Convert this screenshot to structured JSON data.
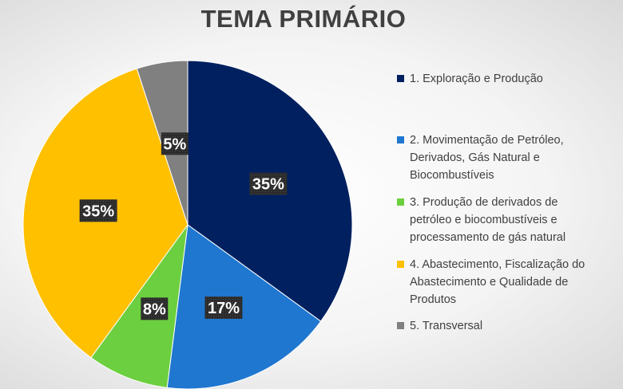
{
  "chart_data": {
    "type": "pie",
    "title": "TEMA PRIMÁRIO",
    "categories": [
      "1. Exploração e Produção",
      "2. Movimentação de Petróleo, Derivados, Gás Natural e Biocombustíveis",
      "3. Produção de derivados de petróleo e biocombustíveis e processamento de gás natural",
      "4. Abastecimento, Fiscalização do Abastecimento e Qualidade de Produtos",
      "5. Transversal"
    ],
    "values": [
      35,
      17,
      8,
      35,
      5
    ],
    "data_labels": [
      "35%",
      "17%",
      "8%",
      "35%",
      "5%"
    ],
    "colors": [
      "#002060",
      "#1f77d0",
      "#6ccf3f",
      "#ffc000",
      "#808080"
    ],
    "legend_position": "right"
  },
  "legend": {
    "lines": [
      [
        "1. Exploração e Produção"
      ],
      [
        "2. Movimentação de Petróleo,",
        "Derivados, Gás Natural e",
        "Biocombustíveis"
      ],
      [
        "3. Produção de derivados de",
        "petróleo e biocombustíveis e",
        "processamento de gás natural"
      ],
      [
        "4. Abastecimento, Fiscalização do",
        "Abastecimento e Qualidade de",
        "Produtos"
      ],
      [
        "5. Transversal"
      ]
    ]
  }
}
